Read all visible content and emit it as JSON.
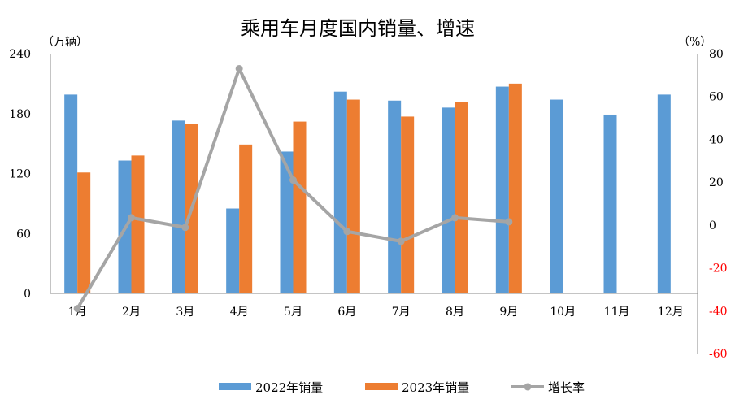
{
  "chart_data": {
    "type": "bar+line",
    "title": "乘用车月度国内销量、增速",
    "ylabel_left": "（万辆）",
    "ylabel_right": "（%）",
    "categories": [
      "1月",
      "2月",
      "3月",
      "4月",
      "5月",
      "6月",
      "7月",
      "8月",
      "9月",
      "10月",
      "11月",
      "12月"
    ],
    "ylim_left": [
      0,
      240
    ],
    "yticks_left": [
      "0",
      "60",
      "120",
      "180",
      "240"
    ],
    "ylim_right": [
      -60,
      80
    ],
    "yticks_right": [
      "-60",
      "-40",
      "-20",
      "0",
      "20",
      "40",
      "60",
      "80"
    ],
    "grid": false,
    "legend_position": "bottom",
    "series": [
      {
        "name": "2022年销量",
        "type": "bar",
        "axis": "left",
        "color": "#5B9BD5",
        "values": [
          199,
          133,
          173,
          85,
          142,
          202,
          193,
          186,
          207,
          194,
          179,
          199
        ]
      },
      {
        "name": "2023年销量",
        "type": "bar",
        "axis": "left",
        "color": "#ED7D31",
        "values": [
          121,
          138,
          170,
          149,
          172,
          194,
          177,
          192,
          210,
          null,
          null,
          null
        ]
      },
      {
        "name": "增长率",
        "type": "line",
        "axis": "right",
        "color": "#A5A5A5",
        "values": [
          -39,
          3.4,
          -1.1,
          73,
          21,
          -3,
          -7.6,
          3.4,
          1.5,
          null,
          null,
          null
        ]
      }
    ],
    "negative_tick_color": "#FF0000"
  }
}
